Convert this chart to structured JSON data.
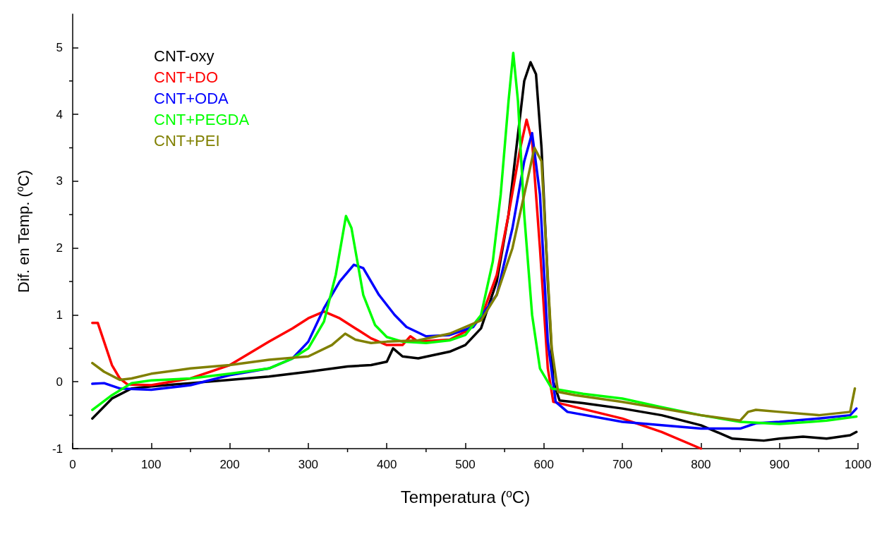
{
  "chart_data": {
    "type": "line",
    "xlabel": "Temperatura ($^{o}$C)",
    "ylabel": "Dif. en Temp. ($^{o}$C)",
    "xlim": [
      0,
      1000
    ],
    "xticks": [
      0,
      100,
      200,
      300,
      400,
      500,
      600,
      700,
      800,
      900,
      1000
    ],
    "ylim": [
      -1,
      5.5
    ],
    "yticks": [
      -1,
      0,
      1,
      2,
      3,
      4,
      5
    ],
    "grid": false,
    "legend": "top left",
    "marker": "none",
    "line_style": "solid",
    "series": [
      {
        "name": "CNT-oxy",
        "color": "#000000",
        "x": [
          25,
          50,
          75,
          100,
          150,
          200,
          250,
          300,
          350,
          380,
          400,
          408,
          420,
          440,
          480,
          500,
          520,
          540,
          555,
          565,
          575,
          583,
          590,
          597,
          605,
          612,
          620,
          650,
          700,
          750,
          800,
          840,
          880,
          900,
          930,
          960,
          990,
          998
        ],
        "values": [
          -0.55,
          -0.25,
          -0.1,
          -0.07,
          -0.02,
          0.03,
          0.08,
          0.15,
          0.23,
          0.25,
          0.3,
          0.5,
          0.38,
          0.35,
          0.45,
          0.55,
          0.8,
          1.5,
          2.5,
          3.5,
          4.5,
          4.78,
          4.6,
          3.5,
          1.5,
          0.0,
          -0.28,
          -0.32,
          -0.4,
          -0.5,
          -0.65,
          -0.85,
          -0.88,
          -0.85,
          -0.82,
          -0.85,
          -0.8,
          -0.75
        ]
      },
      {
        "name": "CNT+DO",
        "color": "#ff0000",
        "x": [
          25,
          32,
          40,
          50,
          60,
          70,
          100,
          150,
          200,
          250,
          280,
          300,
          320,
          340,
          360,
          380,
          400,
          420,
          430,
          440,
          480,
          500,
          520,
          540,
          555,
          570,
          578,
          585,
          595,
          605,
          612,
          630,
          700,
          750,
          800
        ],
        "values": [
          0.88,
          0.88,
          0.6,
          0.25,
          0.05,
          -0.04,
          -0.05,
          0.05,
          0.25,
          0.6,
          0.8,
          0.95,
          1.05,
          0.95,
          0.8,
          0.65,
          0.55,
          0.55,
          0.68,
          0.6,
          0.63,
          0.75,
          0.95,
          1.6,
          2.5,
          3.5,
          3.92,
          3.6,
          2.0,
          0.2,
          -0.3,
          -0.35,
          -0.55,
          -0.75,
          -1.0
        ]
      },
      {
        "name": "CNT+ODA",
        "color": "#0000ff",
        "x": [
          25,
          40,
          60,
          100,
          150,
          200,
          250,
          280,
          300,
          320,
          340,
          358,
          370,
          390,
          410,
          425,
          450,
          480,
          510,
          540,
          560,
          575,
          585,
          595,
          605,
          615,
          630,
          700,
          750,
          800,
          850,
          870,
          900,
          950,
          990,
          998
        ],
        "values": [
          -0.03,
          -0.02,
          -0.1,
          -0.12,
          -0.05,
          0.1,
          0.2,
          0.35,
          0.6,
          1.1,
          1.5,
          1.75,
          1.7,
          1.3,
          1.0,
          0.82,
          0.68,
          0.7,
          0.82,
          1.3,
          2.3,
          3.3,
          3.72,
          2.8,
          0.6,
          -0.3,
          -0.45,
          -0.6,
          -0.65,
          -0.7,
          -0.7,
          -0.62,
          -0.6,
          -0.55,
          -0.5,
          -0.4
        ]
      },
      {
        "name": "CNT+PEGDA",
        "color": "#00ff00",
        "x": [
          25,
          50,
          75,
          100,
          150,
          200,
          250,
          280,
          300,
          320,
          335,
          348,
          355,
          370,
          385,
          400,
          420,
          450,
          480,
          500,
          520,
          535,
          545,
          555,
          561,
          567,
          575,
          585,
          595,
          610,
          650,
          700,
          750,
          800,
          850,
          900,
          940,
          960,
          998
        ],
        "values": [
          -0.42,
          -0.2,
          -0.02,
          0.02,
          0.05,
          0.12,
          0.2,
          0.35,
          0.5,
          0.9,
          1.6,
          2.48,
          2.3,
          1.3,
          0.85,
          0.67,
          0.6,
          0.58,
          0.62,
          0.7,
          1.0,
          1.8,
          2.8,
          4.2,
          4.92,
          4.2,
          2.5,
          1.0,
          0.2,
          -0.1,
          -0.18,
          -0.25,
          -0.38,
          -0.5,
          -0.6,
          -0.63,
          -0.6,
          -0.58,
          -0.52
        ]
      },
      {
        "name": "CNT+PEI",
        "color": "#808000",
        "x": [
          25,
          40,
          60,
          75,
          100,
          150,
          200,
          250,
          300,
          330,
          347,
          360,
          380,
          400,
          440,
          480,
          500,
          520,
          540,
          560,
          575,
          588,
          597,
          603,
          610,
          618,
          640,
          700,
          750,
          800,
          850,
          860,
          870,
          900,
          950,
          990,
          996
        ],
        "values": [
          0.28,
          0.15,
          0.03,
          0.05,
          0.12,
          0.2,
          0.25,
          0.33,
          0.38,
          0.55,
          0.72,
          0.63,
          0.58,
          0.6,
          0.62,
          0.72,
          0.82,
          0.92,
          1.3,
          2.0,
          2.8,
          3.5,
          3.3,
          2.0,
          0.5,
          -0.15,
          -0.2,
          -0.3,
          -0.4,
          -0.5,
          -0.58,
          -0.45,
          -0.42,
          -0.45,
          -0.5,
          -0.45,
          -0.1
        ]
      }
    ]
  }
}
